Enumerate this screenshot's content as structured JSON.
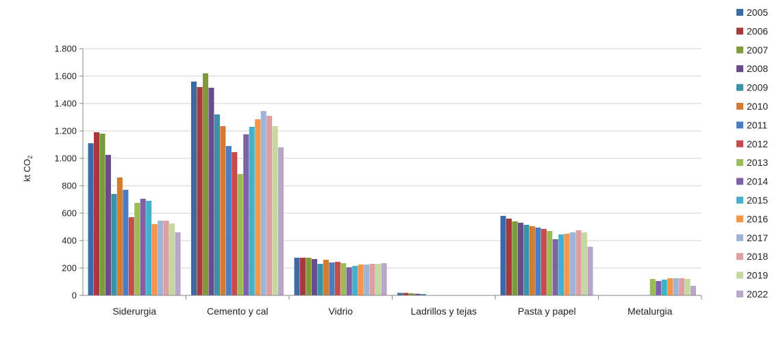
{
  "chart_data": {
    "type": "bar",
    "title": "",
    "xlabel": "",
    "ylabel": "kt CO",
    "ylabel_subscript": "2",
    "ylim": [
      0,
      1800
    ],
    "yticks": [
      0,
      200,
      400,
      600,
      800,
      1000,
      1200,
      1400,
      1600,
      1800
    ],
    "ytick_labels": [
      "0",
      "200",
      "400",
      "600",
      "800",
      "1.000",
      "1.200",
      "1.400",
      "1.600",
      "1.800"
    ],
    "grid": "horizontal",
    "legend_position": "right",
    "categories": [
      "Siderurgia",
      "Cemento y cal",
      "Vidrio",
      "Ladrillos y tejas",
      "Pasta y papel",
      "Metalurgia"
    ],
    "series": [
      {
        "name": "2005",
        "color": "#3C6AA5",
        "values": [
          1110,
          1560,
          275,
          18,
          580,
          0
        ]
      },
      {
        "name": "2006",
        "color": "#A63A3A",
        "values": [
          1190,
          1520,
          275,
          18,
          560,
          0
        ]
      },
      {
        "name": "2007",
        "color": "#7E9A3A",
        "values": [
          1180,
          1620,
          275,
          15,
          540,
          0
        ]
      },
      {
        "name": "2008",
        "color": "#6A4C8C",
        "values": [
          1025,
          1515,
          265,
          12,
          530,
          0
        ]
      },
      {
        "name": "2009",
        "color": "#3A92A8",
        "values": [
          740,
          1320,
          230,
          10,
          515,
          0
        ]
      },
      {
        "name": "2010",
        "color": "#D27C30",
        "values": [
          860,
          1235,
          260,
          0,
          505,
          0
        ]
      },
      {
        "name": "2011",
        "color": "#4A7DC4",
        "values": [
          770,
          1090,
          240,
          0,
          495,
          0
        ]
      },
      {
        "name": "2012",
        "color": "#C74B4A",
        "values": [
          570,
          1045,
          245,
          0,
          485,
          0
        ]
      },
      {
        "name": "2013",
        "color": "#9BBB59",
        "values": [
          675,
          885,
          235,
          0,
          470,
          120
        ]
      },
      {
        "name": "2014",
        "color": "#7F61A8",
        "values": [
          705,
          1175,
          205,
          0,
          410,
          105
        ]
      },
      {
        "name": "2015",
        "color": "#45B0CC",
        "values": [
          690,
          1230,
          215,
          0,
          445,
          115
        ]
      },
      {
        "name": "2016",
        "color": "#F79646",
        "values": [
          520,
          1285,
          225,
          0,
          450,
          125
        ]
      },
      {
        "name": "2017",
        "color": "#9FB4D6",
        "values": [
          545,
          1345,
          225,
          0,
          460,
          125
        ]
      },
      {
        "name": "2018",
        "color": "#DDA0A0",
        "values": [
          545,
          1310,
          230,
          0,
          475,
          125
        ]
      },
      {
        "name": "2019",
        "color": "#C4D8A0",
        "values": [
          525,
          1235,
          230,
          0,
          460,
          120
        ]
      },
      {
        "name": "2022",
        "color": "#B9A7CA",
        "values": [
          460,
          1080,
          235,
          0,
          355,
          70
        ]
      }
    ]
  }
}
